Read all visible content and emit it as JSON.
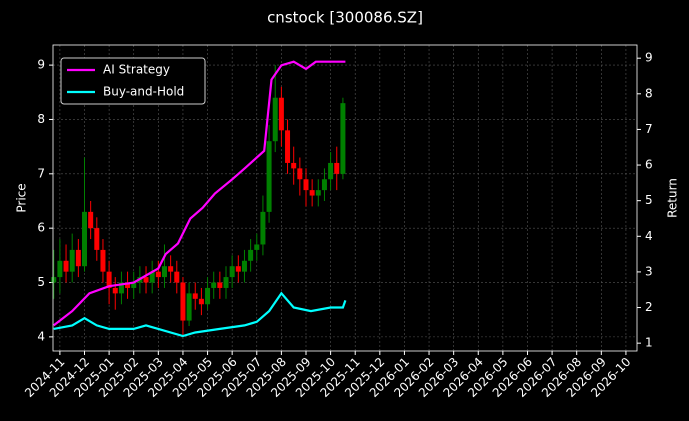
{
  "chart_data": {
    "type": "candlestick",
    "title": "cnstock [300086.SZ]",
    "y_label": "Price",
    "y2_label": "Return",
    "xlim": [
      -0.28,
      23.45
    ],
    "xticks": [
      {
        "value": 0,
        "label": "2024-11"
      },
      {
        "value": 1,
        "label": "2024-12"
      },
      {
        "value": 2,
        "label": "2025-01"
      },
      {
        "value": 3,
        "label": "2025-02"
      },
      {
        "value": 4,
        "label": "2025-03"
      },
      {
        "value": 5,
        "label": "2025-04"
      },
      {
        "value": 6,
        "label": "2025-05"
      },
      {
        "value": 7,
        "label": "2025-06"
      },
      {
        "value": 8,
        "label": "2025-07"
      },
      {
        "value": 9,
        "label": "2025-08"
      },
      {
        "value": 10,
        "label": "2025-09"
      },
      {
        "value": 11,
        "label": "2025-10"
      },
      {
        "value": 12,
        "label": "2025-11"
      },
      {
        "value": 13,
        "label": "2025-12"
      },
      {
        "value": 14,
        "label": "2026-01"
      },
      {
        "value": 15,
        "label": "2026-02"
      },
      {
        "value": 16,
        "label": "2026-03"
      },
      {
        "value": 17,
        "label": "2026-04"
      },
      {
        "value": 18,
        "label": "2026-05"
      },
      {
        "value": 19,
        "label": "2026-06"
      },
      {
        "value": 20,
        "label": "2026-07"
      },
      {
        "value": 21,
        "label": "2026-08"
      },
      {
        "value": 22,
        "label": "2026-09"
      },
      {
        "value": 23,
        "label": "2026-10"
      }
    ],
    "ylim": [
      3.74,
      9.37
    ],
    "yticks": [
      4,
      5,
      6,
      7,
      8,
      9
    ],
    "y2lim": [
      0.78,
      9.37
    ],
    "y2ticks": [
      1,
      2,
      3,
      4,
      5,
      6,
      7,
      8,
      9
    ],
    "grid": true,
    "legend": "upper left",
    "up_color": "#008000",
    "down_color": "#ff0000",
    "candles": {
      "x": [
        -0.25,
        0,
        0.25,
        0.5,
        0.75,
        1,
        1.25,
        1.5,
        1.75,
        2,
        2.25,
        2.5,
        2.75,
        3,
        3.25,
        3.5,
        3.75,
        4,
        4.25,
        4.5,
        4.75,
        5,
        5.25,
        5.5,
        5.75,
        6,
        6.25,
        6.5,
        6.75,
        7,
        7.25,
        7.5,
        7.75,
        8,
        8.25,
        8.5,
        8.75,
        9,
        9.25,
        9.5,
        9.75,
        10,
        10.25,
        10.5,
        10.75,
        11,
        11.25,
        11.5
      ],
      "open": [
        5.0,
        5.1,
        5.4,
        5.2,
        5.6,
        5.3,
        6.3,
        6.0,
        5.6,
        5.2,
        4.9,
        4.8,
        5.0,
        4.9,
        5.0,
        5.1,
        5.0,
        5.2,
        5.1,
        5.3,
        5.2,
        5.0,
        4.3,
        4.8,
        4.7,
        4.6,
        4.9,
        5.0,
        4.9,
        5.1,
        5.3,
        5.2,
        5.4,
        5.6,
        5.7,
        6.3,
        7.6,
        8.4,
        7.8,
        7.2,
        7.1,
        6.9,
        6.7,
        6.6,
        6.7,
        6.9,
        7.2,
        7.0
      ],
      "high": [
        5.6,
        5.8,
        5.7,
        5.9,
        5.8,
        7.3,
        6.5,
        6.2,
        5.8,
        5.4,
        5.1,
        5.2,
        5.2,
        5.2,
        5.3,
        5.3,
        5.4,
        5.4,
        5.7,
        5.5,
        5.4,
        5.1,
        5.0,
        5.0,
        4.9,
        5.1,
        5.2,
        5.2,
        5.3,
        5.5,
        5.5,
        5.6,
        5.8,
        5.9,
        6.6,
        7.9,
        9.0,
        8.6,
        8.0,
        7.5,
        7.3,
        7.1,
        6.9,
        6.9,
        7.1,
        7.4,
        7.5,
        8.4
      ],
      "low": [
        4.7,
        4.8,
        5.0,
        5.0,
        5.1,
        5.2,
        5.8,
        5.4,
        5.0,
        4.6,
        4.5,
        4.6,
        4.7,
        4.7,
        4.8,
        4.8,
        4.8,
        4.9,
        4.9,
        5.0,
        4.8,
        4.0,
        4.2,
        4.5,
        4.4,
        4.5,
        4.7,
        4.7,
        4.7,
        4.9,
        5.0,
        5.0,
        5.2,
        5.4,
        5.5,
        6.1,
        7.4,
        7.5,
        7.0,
        6.8,
        6.6,
        6.4,
        6.4,
        6.4,
        6.5,
        6.7,
        6.7,
        6.9
      ],
      "close": [
        5.1,
        5.4,
        5.2,
        5.6,
        5.3,
        6.3,
        6.0,
        5.6,
        5.2,
        4.9,
        4.8,
        5.0,
        4.9,
        5.0,
        5.1,
        5.0,
        5.2,
        5.1,
        5.3,
        5.2,
        5.0,
        4.3,
        4.8,
        4.7,
        4.6,
        4.9,
        5.0,
        4.9,
        5.1,
        5.3,
        5.2,
        5.4,
        5.6,
        5.7,
        6.3,
        7.6,
        8.4,
        7.8,
        7.2,
        7.1,
        6.9,
        6.7,
        6.6,
        6.7,
        6.9,
        7.2,
        7.0,
        8.3
      ]
    },
    "series": [
      {
        "name": "AI Strategy",
        "color": "#ff00ff",
        "axis": "y2",
        "x": [
          -0.25,
          0.5,
          1.2,
          2,
          3,
          3.5,
          4,
          4.3,
          4.8,
          5.3,
          5.8,
          6.3,
          7,
          7.5,
          8.3,
          8.6,
          9,
          9.5,
          10,
          10.4,
          11.6
        ],
        "values": [
          1.5,
          1.9,
          2.4,
          2.6,
          2.7,
          2.9,
          3.1,
          3.5,
          3.8,
          4.5,
          4.8,
          5.2,
          5.6,
          5.9,
          6.4,
          8.4,
          8.8,
          8.9,
          8.7,
          8.9,
          8.9
        ]
      },
      {
        "name": "Buy-and-Hold",
        "color": "#00ffff",
        "axis": "y2",
        "x": [
          -0.25,
          0.5,
          1,
          1.5,
          2,
          3,
          3.5,
          4,
          5,
          5.5,
          6.5,
          7.5,
          8,
          8.5,
          9,
          9.5,
          10.2,
          11,
          11.5,
          11.6
        ],
        "values": [
          1.4,
          1.5,
          1.7,
          1.5,
          1.4,
          1.4,
          1.5,
          1.4,
          1.2,
          1.3,
          1.4,
          1.5,
          1.6,
          1.9,
          2.4,
          2.0,
          1.9,
          2.0,
          2.0,
          2.2
        ]
      }
    ]
  }
}
